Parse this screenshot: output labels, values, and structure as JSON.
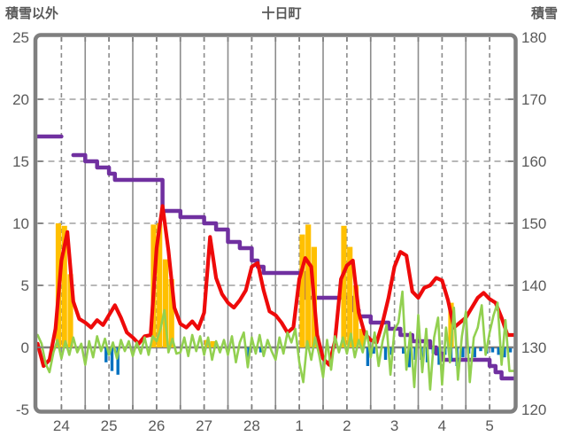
{
  "chart_data": {
    "type": "composite",
    "title": "十日町",
    "left_axis": {
      "title": "積雪以外",
      "min": -5,
      "max": 25,
      "ticks": [
        25,
        20,
        15,
        10,
        5,
        0,
        -5
      ]
    },
    "right_axis": {
      "title": "積雪",
      "min": 120,
      "max": 180,
      "ticks": [
        180,
        170,
        160,
        150,
        140,
        130,
        120
      ]
    },
    "x_axis": {
      "labels": [
        "24",
        "25",
        "26",
        "27",
        "28",
        "1",
        "2",
        "3",
        "4",
        "5"
      ],
      "days": 10,
      "solid_gridlines": "day-boundaries",
      "dashed_gridlines": "day-midpoints"
    },
    "grid": {
      "horizontal_dashed_at_left_values": [
        20,
        15,
        10,
        5
      ],
      "zero_line_left_value": 0
    },
    "legend": "none",
    "series": [
      {
        "name": "snow-depth-step",
        "type": "step",
        "axis": "right",
        "color": "#7030A0",
        "interval_hours": 3,
        "values": [
          164,
          164,
          164,
          164,
          null,
          null,
          161,
          161,
          160,
          160,
          159,
          159,
          158,
          157,
          157,
          157,
          157,
          157,
          157,
          157,
          157,
          152,
          152,
          152,
          151,
          151,
          151,
          151,
          150,
          150,
          149,
          149,
          147,
          147,
          146,
          146,
          144,
          143,
          142,
          142,
          142,
          142,
          142,
          142,
          142,
          138,
          138,
          138,
          138,
          138,
          138,
          138,
          138,
          136,
          135,
          135,
          134,
          134,
          134,
          133,
          133,
          132,
          132,
          131,
          131,
          131,
          130,
          129,
          128,
          128,
          128,
          128,
          128,
          128,
          128,
          128,
          127,
          126,
          125,
          125
        ]
      },
      {
        "name": "orange-bars",
        "type": "bar",
        "axis": "left",
        "color": "#FFC000",
        "interval_hours": 3,
        "values": [
          0,
          0,
          0,
          10,
          9.8,
          5.9,
          0,
          0,
          0,
          0,
          0,
          0,
          0,
          0,
          0,
          0,
          0,
          0,
          0,
          9.9,
          10,
          7.1,
          5.5,
          0,
          0,
          0,
          0,
          0,
          0.6,
          0.5,
          0,
          0,
          0,
          0,
          0,
          0,
          0,
          0,
          0,
          0,
          0,
          0,
          0,
          0,
          9.1,
          9.9,
          8.1,
          0,
          0,
          0,
          0,
          9.8,
          8.1,
          5.0,
          1.5,
          0,
          0,
          0,
          0,
          0,
          0,
          0,
          0,
          0,
          0,
          0,
          0,
          0,
          0,
          3.6,
          0,
          0,
          0,
          0,
          0,
          0,
          0,
          0,
          0,
          0
        ]
      },
      {
        "name": "blue-bars",
        "type": "bar",
        "axis": "left",
        "color": "#0070C0",
        "interval_hours": 3,
        "values": [
          0,
          0,
          0,
          0,
          0,
          0,
          0,
          0,
          0,
          0,
          0,
          -1.2,
          -1.9,
          -2.2,
          0,
          0,
          0,
          0,
          0,
          0,
          0,
          0,
          0,
          0,
          0,
          0,
          0,
          0,
          0,
          0,
          0,
          0,
          0,
          0,
          0,
          -0.9,
          0,
          -0.4,
          0,
          0,
          0,
          0,
          0,
          0,
          0,
          0,
          0,
          0,
          0,
          0,
          0,
          0,
          0,
          0,
          0,
          -1.5,
          -0.5,
          0,
          -1.0,
          -0.6,
          0,
          -0.5,
          -1.6,
          -1.0,
          -1.0,
          -1.2,
          -0.5,
          -1.4,
          -0.6,
          -1.1,
          -1.5,
          -0.8,
          -0.5,
          -0.8,
          -0.3,
          -0.5,
          -0.4,
          -0.6,
          -0.8,
          -0.4
        ]
      },
      {
        "name": "red-line",
        "type": "line",
        "axis": "left",
        "color": "#EE0A0A",
        "interval_hours": 3,
        "values": [
          0.3,
          -1.5,
          -1.0,
          1.5,
          7.0,
          9.3,
          3.7,
          2.3,
          2.0,
          1.6,
          2.2,
          1.8,
          2.6,
          3.4,
          2.4,
          1.2,
          0.8,
          0.3,
          0.9,
          1.0,
          8.0,
          11.4,
          7.8,
          3.2,
          1.9,
          1.6,
          2.1,
          1.5,
          2.8,
          8.9,
          5.6,
          4.3,
          3.6,
          3.2,
          3.8,
          4.6,
          6.5,
          6.8,
          4.6,
          2.9,
          2.6,
          2.0,
          1.2,
          1.6,
          5.5,
          7.2,
          6.5,
          1.0,
          -0.9,
          -1.4,
          0.5,
          5.5,
          6.6,
          7.0,
          2.8,
          1.1,
          0.6,
          0.4,
          2.0,
          4.0,
          6.5,
          7.7,
          7.4,
          4.5,
          4.0,
          4.8,
          5.0,
          5.6,
          5.4,
          3.8,
          1.6,
          2.0,
          2.4,
          3.2,
          4.0,
          4.4,
          3.9,
          3.6,
          2.4,
          1.0
        ]
      },
      {
        "name": "green-line",
        "type": "line",
        "axis": "left",
        "color": "#92D050",
        "interval_hours": 2,
        "values": [
          1.0,
          0.3,
          -1.3,
          -2.0,
          -0.4,
          0.6,
          -0.9,
          0.5,
          -0.6,
          0.8,
          -0.4,
          0.3,
          -1.4,
          0.5,
          -0.8,
          0.9,
          -0.3,
          0.7,
          -0.6,
          0.4,
          -0.9,
          0.6,
          -0.3,
          0.5,
          -0.7,
          0.4,
          -0.5,
          0.8,
          -0.6,
          0.9,
          0.5,
          1.5,
          3.0,
          -0.4,
          0.7,
          -0.5,
          -0.4,
          0.8,
          -0.7,
          1.0,
          -0.3,
          0.9,
          -0.6,
          0.8,
          -1.0,
          0.5,
          -0.4,
          0.6,
          -0.6,
          0.9,
          -1.2,
          0.4,
          1.2,
          -1.6,
          0.8,
          -0.5,
          1.0,
          -0.7,
          0.6,
          -0.3,
          -1.0,
          0.8,
          -0.5,
          1.2,
          0.4,
          1.5,
          -1.2,
          -2.8,
          0.5,
          -1.0,
          0.8,
          -0.6,
          -2.4,
          0.6,
          -1.8,
          0.9,
          -0.4,
          0.8,
          -0.5,
          1.1,
          -0.8,
          0.6,
          -0.4,
          1.3,
          -0.8,
          1.2,
          -1.5,
          0.5,
          1.8,
          -2.2,
          1.4,
          2.0,
          4.5,
          -1.8,
          1.2,
          -3.2,
          2.6,
          -2.0,
          1.5,
          -3.4,
          0.8,
          2.4,
          -3.0,
          1.6,
          -1.2,
          3.2,
          -2.6,
          0.9,
          2.9,
          -2.8,
          0.8,
          1.6,
          3.4,
          -0.6,
          1.2,
          2.6,
          3.6,
          -1.4,
          2.2,
          -1.9
        ]
      }
    ]
  },
  "style": {
    "text_color": "#595959",
    "border_color": "#7F7F7F",
    "solid_grid_color": "#8C8C8C",
    "dashed_grid_color": "#A0A0A0",
    "zero_line_color": "#808080",
    "background": "#FFFFFF"
  }
}
